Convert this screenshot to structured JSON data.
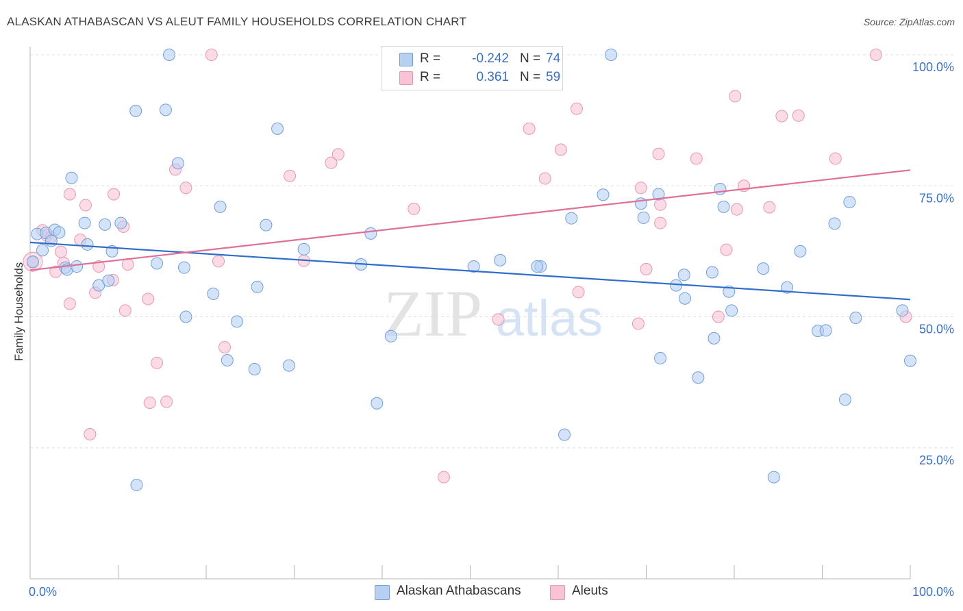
{
  "header": {
    "title": "ALASKAN ATHABASCAN VS ALEUT FAMILY HOUSEHOLDS CORRELATION CHART",
    "source": "Source: ZipAtlas.com"
  },
  "legend": {
    "rows": [
      {
        "r_label": "R =",
        "r_value": "-0.242",
        "n_label": "N =",
        "n_value": "74"
      },
      {
        "r_label": "R =",
        "r_value": "0.361",
        "n_label": "N =",
        "n_value": "59"
      }
    ]
  },
  "bottom_legend": {
    "items": [
      {
        "label": "Alaskan Athabascans"
      },
      {
        "label": "Aleuts"
      }
    ]
  },
  "watermark": {
    "zip": "ZIP",
    "atlas": "atlas"
  },
  "colors": {
    "blue_fill": "#b7d0f2",
    "blue_stroke": "#6f9fdb",
    "blue_line": "#2f6dcc",
    "pink_fill": "#f8c4d5",
    "pink_stroke": "#e796b1",
    "pink_line": "#e06f98",
    "tick_label": "#3a6fc5",
    "grid": "#dedede"
  },
  "chart_data": {
    "type": "scatter",
    "title": "ALASKAN ATHABASCAN VS ALEUT FAMILY HOUSEHOLDS CORRELATION CHART",
    "xlabel": "",
    "ylabel": "Family Households",
    "xlim": [
      0,
      100
    ],
    "ylim": [
      0,
      100
    ],
    "x_tick_labels": [
      {
        "value": 0,
        "label": "0.0%"
      },
      {
        "value": 100,
        "label": "100.0%"
      }
    ],
    "y_tick_labels": [
      {
        "value": 25,
        "label": "25.0%"
      },
      {
        "value": 50,
        "label": "50.0%"
      },
      {
        "value": 75,
        "label": "75.0%"
      },
      {
        "value": 100,
        "label": "100.0%"
      }
    ],
    "grid": "horizontal dashed",
    "legend_position": "top-center",
    "series": [
      {
        "name": "Alaskan Athabascans",
        "color": "#6f9fdb",
        "trendline": {
          "x": [
            0,
            100
          ],
          "y": [
            64.2,
            53.3
          ]
        },
        "points": [
          [
            0.3,
            60.5
          ],
          [
            0.8,
            65.8
          ],
          [
            1.4,
            62.7
          ],
          [
            1.8,
            66.0
          ],
          [
            2.4,
            64.5
          ],
          [
            2.8,
            66.6
          ],
          [
            3.3,
            66.1
          ],
          [
            4.0,
            59.4
          ],
          [
            4.2,
            59.0
          ],
          [
            4.7,
            76.5
          ],
          [
            5.3,
            59.6
          ],
          [
            6.2,
            67.9
          ],
          [
            6.5,
            63.8
          ],
          [
            7.8,
            56.0
          ],
          [
            8.5,
            67.6
          ],
          [
            8.9,
            56.9
          ],
          [
            9.3,
            62.5
          ],
          [
            10.3,
            67.9
          ],
          [
            12.0,
            89.3
          ],
          [
            12.1,
            17.9
          ],
          [
            14.4,
            60.2
          ],
          [
            15.4,
            89.5
          ],
          [
            15.8,
            100.0
          ],
          [
            16.8,
            79.3
          ],
          [
            17.5,
            59.4
          ],
          [
            17.7,
            50.0
          ],
          [
            20.8,
            54.4
          ],
          [
            21.6,
            71.0
          ],
          [
            22.4,
            41.7
          ],
          [
            23.5,
            49.1
          ],
          [
            25.5,
            40.0
          ],
          [
            25.8,
            55.7
          ],
          [
            26.8,
            67.5
          ],
          [
            28.1,
            85.9
          ],
          [
            29.4,
            40.7
          ],
          [
            31.1,
            62.9
          ],
          [
            37.6,
            60.0
          ],
          [
            38.7,
            65.9
          ],
          [
            39.4,
            33.5
          ],
          [
            41.0,
            46.3
          ],
          [
            50.4,
            59.6
          ],
          [
            53.4,
            60.8
          ],
          [
            58.0,
            59.6
          ],
          [
            60.7,
            27.5
          ],
          [
            61.5,
            68.8
          ],
          [
            65.1,
            73.3
          ],
          [
            66.0,
            100.0
          ],
          [
            69.4,
            71.6
          ],
          [
            69.7,
            68.9
          ],
          [
            71.4,
            73.4
          ],
          [
            71.6,
            42.1
          ],
          [
            73.4,
            56.0
          ],
          [
            74.3,
            58.0
          ],
          [
            74.4,
            53.5
          ],
          [
            75.9,
            38.4
          ],
          [
            77.5,
            58.5
          ],
          [
            77.7,
            45.9
          ],
          [
            78.4,
            74.4
          ],
          [
            78.8,
            71.0
          ],
          [
            79.4,
            54.8
          ],
          [
            79.7,
            51.2
          ],
          [
            83.3,
            59.2
          ],
          [
            84.5,
            19.4
          ],
          [
            86.0,
            55.6
          ],
          [
            87.5,
            62.5
          ],
          [
            89.5,
            47.3
          ],
          [
            90.4,
            47.4
          ],
          [
            91.4,
            67.8
          ],
          [
            92.6,
            34.2
          ],
          [
            93.1,
            71.9
          ],
          [
            93.8,
            49.8
          ],
          [
            99.1,
            51.2
          ],
          [
            100.0,
            41.6
          ],
          [
            57.6,
            59.6
          ]
        ]
      },
      {
        "name": "Aleuts",
        "color": "#e796b1",
        "trendline": {
          "x": [
            0,
            100
          ],
          "y": [
            58.9,
            78.0
          ]
        },
        "points": [
          [
            0.3,
            60.4
          ],
          [
            1.4,
            66.5
          ],
          [
            1.9,
            65.5
          ],
          [
            2.4,
            65.2
          ],
          [
            2.9,
            58.6
          ],
          [
            3.5,
            62.4
          ],
          [
            3.8,
            60.3
          ],
          [
            4.5,
            52.5
          ],
          [
            4.5,
            73.4
          ],
          [
            5.7,
            64.7
          ],
          [
            6.3,
            71.3
          ],
          [
            6.8,
            27.6
          ],
          [
            7.4,
            54.6
          ],
          [
            7.8,
            59.6
          ],
          [
            9.4,
            57.0
          ],
          [
            9.5,
            73.4
          ],
          [
            10.6,
            67.2
          ],
          [
            10.8,
            51.2
          ],
          [
            11.1,
            60.0
          ],
          [
            13.4,
            53.4
          ],
          [
            13.6,
            33.6
          ],
          [
            14.4,
            41.2
          ],
          [
            15.5,
            33.8
          ],
          [
            16.5,
            78.1
          ],
          [
            17.7,
            74.6
          ],
          [
            20.6,
            100.0
          ],
          [
            21.4,
            60.6
          ],
          [
            22.1,
            44.2
          ],
          [
            29.5,
            76.9
          ],
          [
            31.1,
            60.7
          ],
          [
            34.2,
            79.4
          ],
          [
            35.0,
            81.0
          ],
          [
            43.6,
            70.6
          ],
          [
            47.0,
            19.4
          ],
          [
            53.2,
            49.5
          ],
          [
            56.1,
            100.0
          ],
          [
            56.7,
            85.9
          ],
          [
            58.5,
            76.4
          ],
          [
            60.3,
            81.9
          ],
          [
            62.1,
            89.7
          ],
          [
            62.3,
            54.7
          ],
          [
            69.1,
            48.7
          ],
          [
            69.4,
            74.6
          ],
          [
            70.0,
            59.1
          ],
          [
            71.4,
            81.1
          ],
          [
            71.6,
            67.9
          ],
          [
            75.7,
            80.2
          ],
          [
            78.2,
            50.0
          ],
          [
            79.1,
            62.8
          ],
          [
            80.1,
            92.1
          ],
          [
            80.3,
            70.5
          ],
          [
            81.1,
            75.0
          ],
          [
            84.0,
            70.9
          ],
          [
            85.4,
            88.3
          ],
          [
            87.3,
            88.4
          ],
          [
            91.5,
            80.2
          ],
          [
            96.1,
            100.0
          ],
          [
            99.5,
            50.0
          ],
          [
            71.6,
            71.4
          ]
        ]
      }
    ]
  }
}
